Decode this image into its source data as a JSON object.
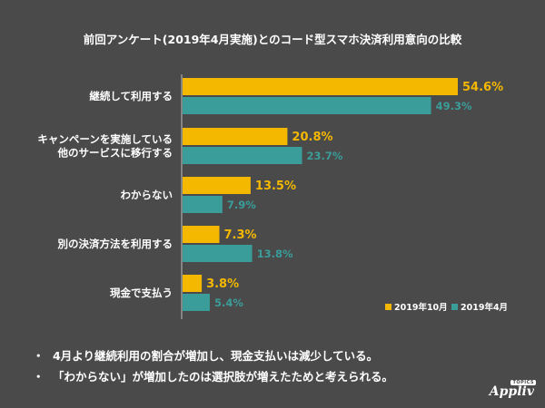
{
  "chart_data": {
    "type": "bar",
    "orientation": "horizontal",
    "title": "前回アンケート(2019年4月実施)とのコード型スマホ決済利用意向の比較",
    "categories": [
      [
        "継続して利用する"
      ],
      [
        "キャンペーンを実施している",
        "他のサービスに移行する"
      ],
      [
        "わからない"
      ],
      [
        "別の決済方法を利用する"
      ],
      [
        "現金で支払う"
      ]
    ],
    "series": [
      {
        "name": "2019年10月",
        "color": "#f5b800",
        "values": [
          54.6,
          20.8,
          13.5,
          7.3,
          3.8
        ],
        "labels": [
          "54.6%",
          "20.8%",
          "13.5%",
          "7.3%",
          "3.8%"
        ]
      },
      {
        "name": "2019年4月",
        "color": "#3a9d9a",
        "values": [
          49.3,
          23.7,
          7.9,
          13.8,
          5.4
        ],
        "labels": [
          "49.3%",
          "23.7%",
          "7.9%",
          "13.8%",
          "5.4%"
        ]
      }
    ],
    "xlim": [
      0,
      60
    ],
    "legend_position": "bottom-right",
    "grid": false
  },
  "notes": {
    "bullet": "・",
    "items": [
      "4月より継続利用の割合が増加し、現金支払いは減少している。",
      "「わからない」が増加したのは選択肢が増えたためと考えられる。"
    ]
  },
  "logo": {
    "text": "Appliv",
    "sub": "TOPICS"
  }
}
